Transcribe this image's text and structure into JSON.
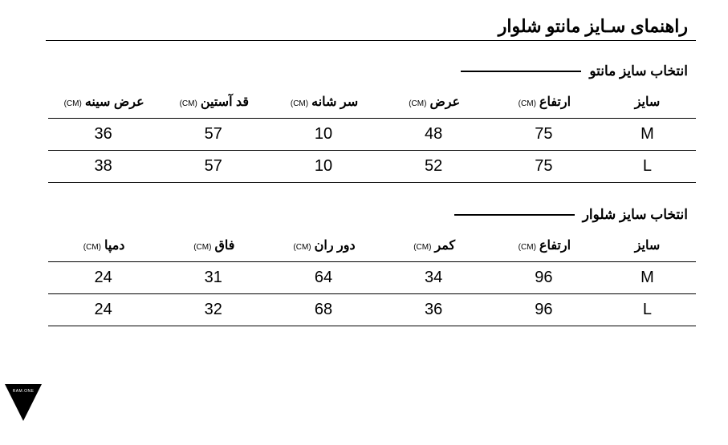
{
  "title": "راهنمای سـایز مانتو شلوار",
  "unit_label": "(CM)",
  "logo_text": "RAM.ONE",
  "sections": [
    {
      "title": "انتخاب سایز مانتو",
      "columns": [
        {
          "label": "سایز",
          "unit": false
        },
        {
          "label": "ارتفاع",
          "unit": true
        },
        {
          "label": "عرض",
          "unit": true
        },
        {
          "label": "سر شانه",
          "unit": true
        },
        {
          "label": "قد آستین",
          "unit": true
        },
        {
          "label": "عرض سینه",
          "unit": true
        }
      ],
      "rows": [
        [
          "M",
          "75",
          "48",
          "10",
          "57",
          "36"
        ],
        [
          "L",
          "75",
          "52",
          "10",
          "57",
          "38"
        ]
      ]
    },
    {
      "title": "انتخاب سایز شلوار",
      "columns": [
        {
          "label": "سایز",
          "unit": false
        },
        {
          "label": "ارتفاع",
          "unit": true
        },
        {
          "label": "کمر",
          "unit": true
        },
        {
          "label": "دور ران",
          "unit": true
        },
        {
          "label": "فاق",
          "unit": true
        },
        {
          "label": "دمپا",
          "unit": true
        }
      ],
      "rows": [
        [
          "M",
          "96",
          "34",
          "64",
          "31",
          "24"
        ],
        [
          "L",
          "96",
          "36",
          "68",
          "32",
          "24"
        ]
      ]
    }
  ],
  "colors": {
    "background": "#ffffff",
    "text": "#000000",
    "rule": "#000000"
  }
}
